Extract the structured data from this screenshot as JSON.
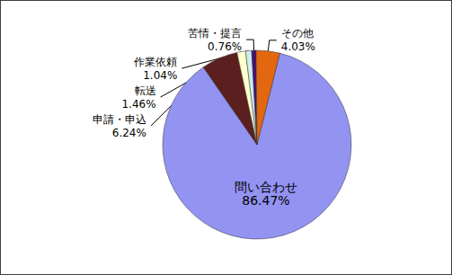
{
  "chart_data": {
    "type": "pie",
    "categories": [
      "問い合わせ",
      "申請・申込",
      "転送",
      "作業依頼",
      "苦情・提言",
      "その他"
    ],
    "values": [
      86.47,
      6.24,
      1.46,
      1.04,
      0.76,
      4.03
    ],
    "value_labels": [
      "86.47%",
      "6.24%",
      "1.46%",
      "1.04%",
      "0.76%",
      "4.03%"
    ],
    "colors": [
      "#9393f2",
      "#5c1f1f",
      "#ffffcc",
      "#cceeee",
      "#4a1070",
      "#e2670f"
    ],
    "data_labels": true
  }
}
